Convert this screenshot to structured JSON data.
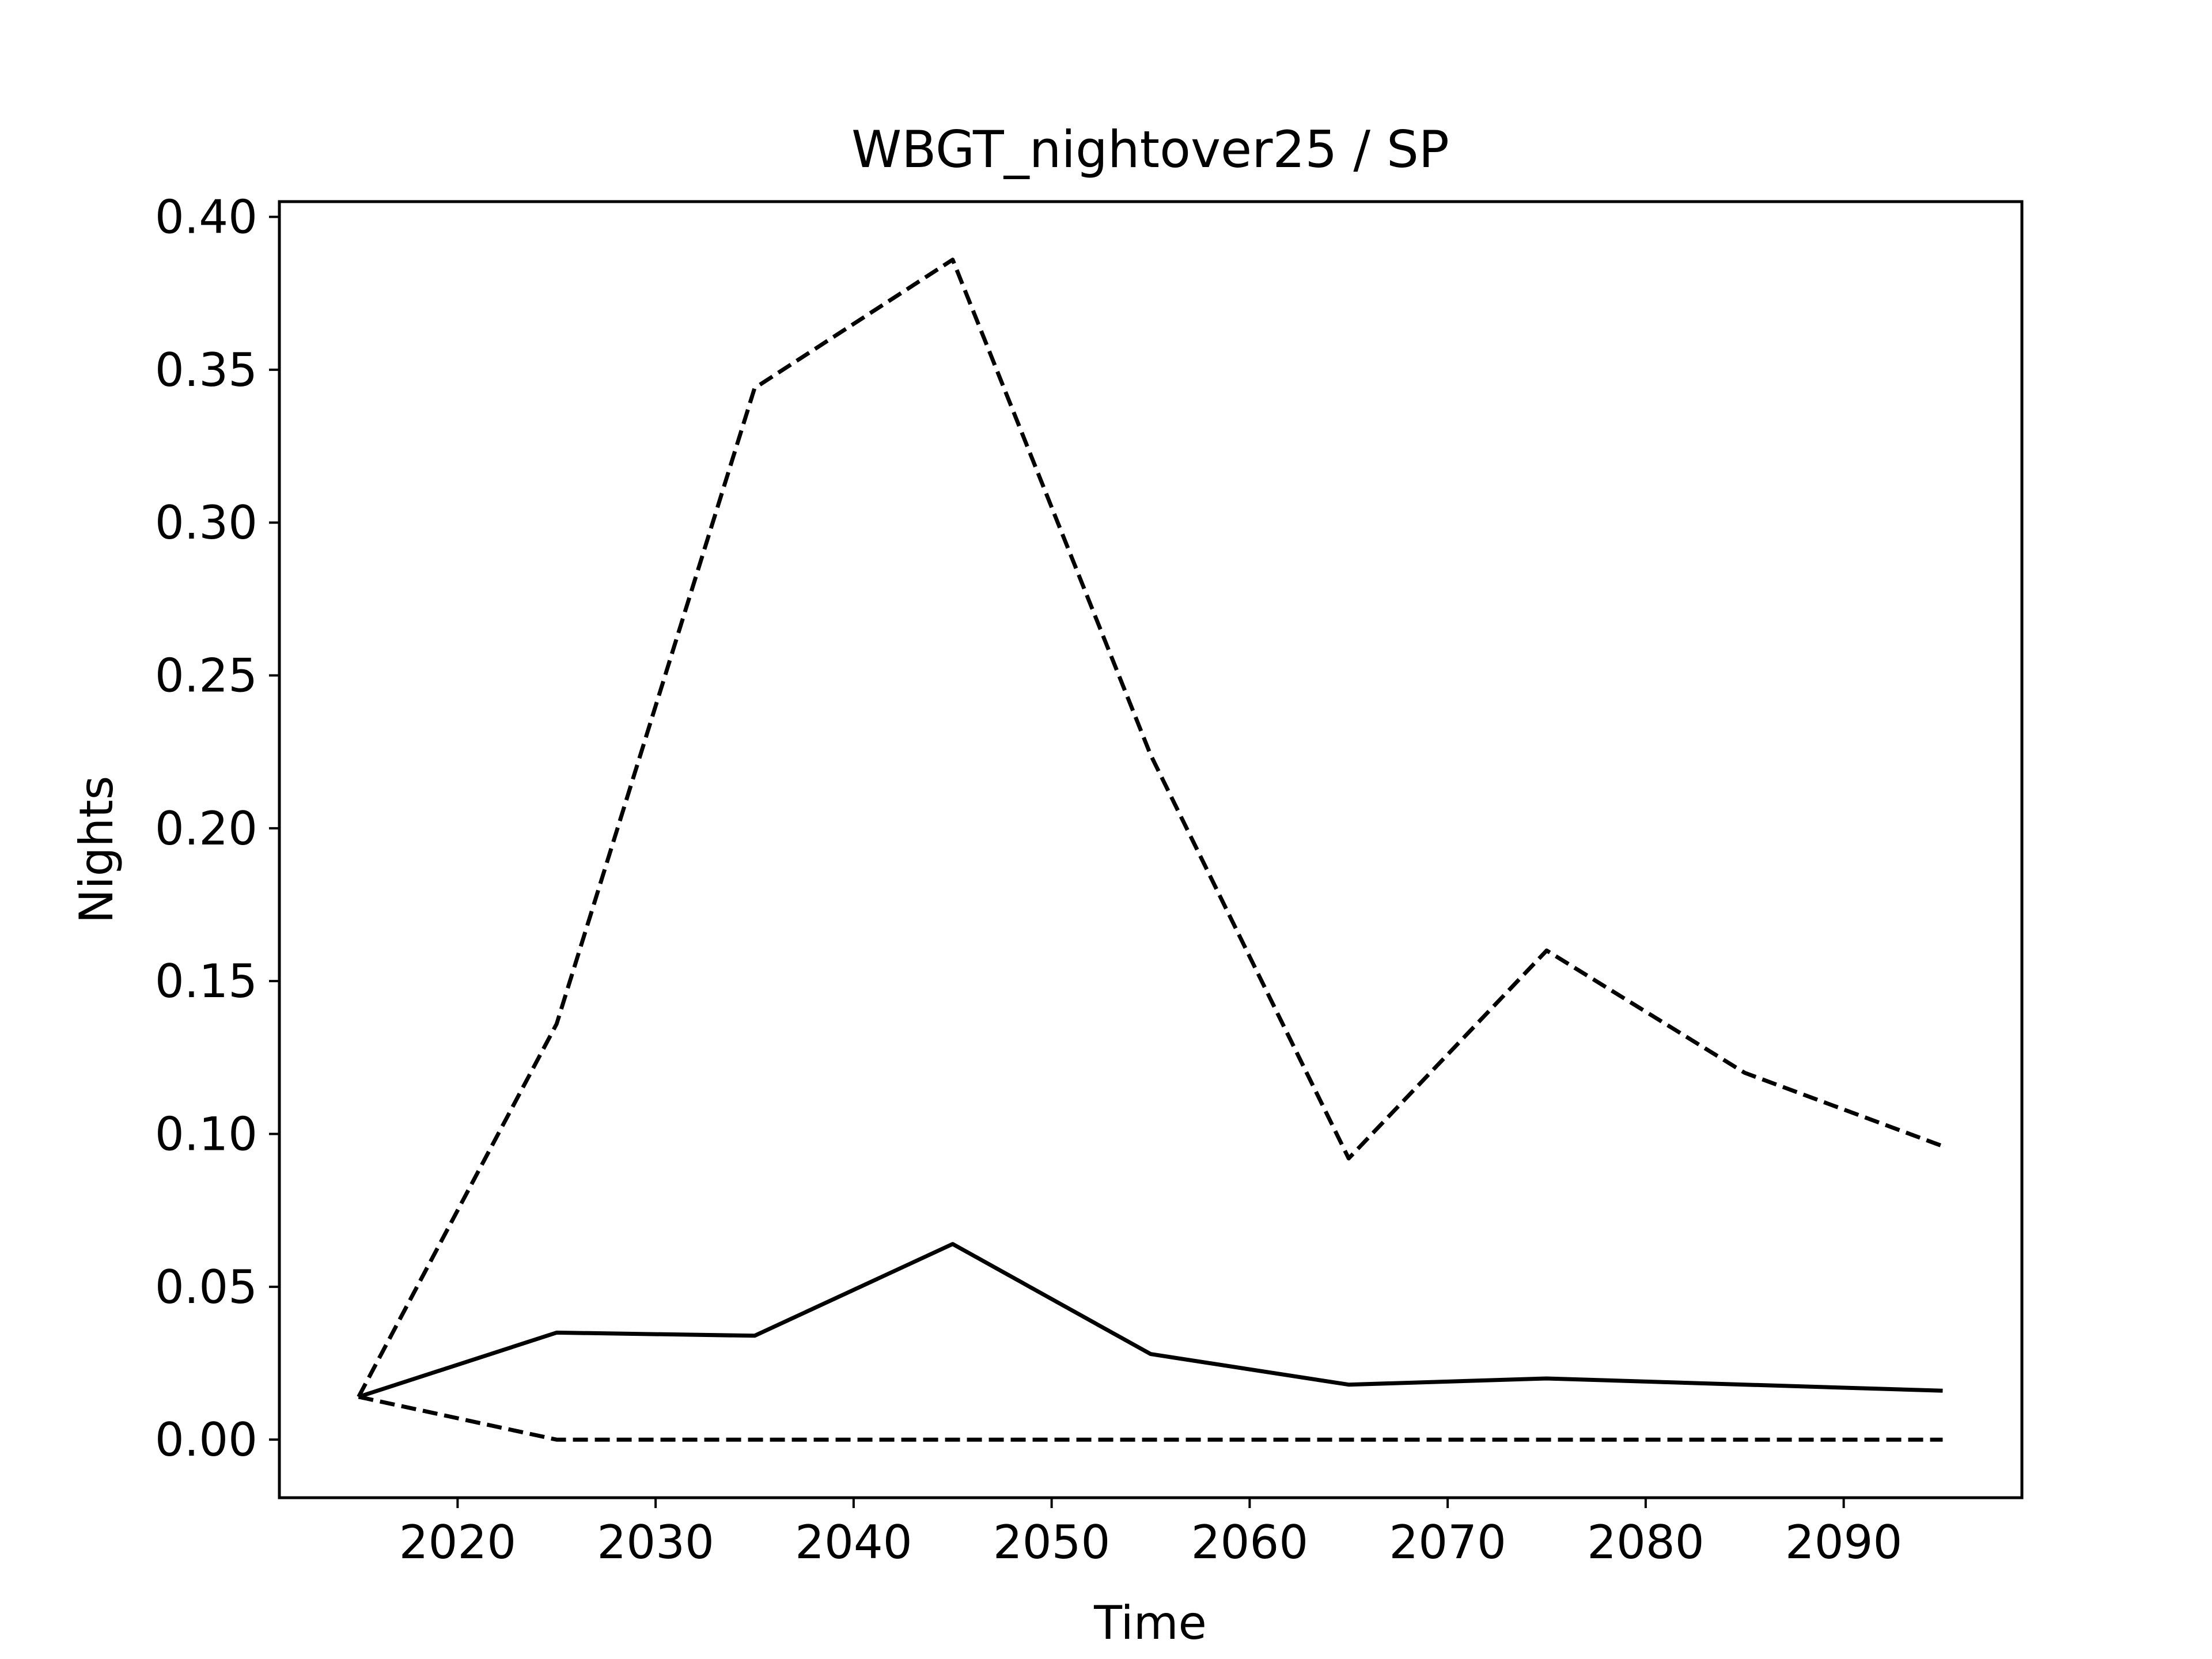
{
  "chart_data": {
    "type": "line",
    "title": "WBGT_nightover25 / SP",
    "xlabel": "Time",
    "ylabel": "Nights",
    "xlim": [
      2011,
      2099
    ],
    "ylim": [
      -0.019,
      0.405
    ],
    "x_ticks": [
      2020,
      2030,
      2040,
      2050,
      2060,
      2070,
      2080,
      2090
    ],
    "y_ticks": [
      0.0,
      0.05,
      0.1,
      0.15,
      0.2,
      0.25,
      0.3,
      0.35,
      0.4
    ],
    "y_tick_labels": [
      "0.00",
      "0.05",
      "0.10",
      "0.15",
      "0.20",
      "0.25",
      "0.30",
      "0.35",
      "0.40"
    ],
    "grid": false,
    "legend": "none",
    "x": [
      2015,
      2025,
      2035,
      2045,
      2055,
      2065,
      2075,
      2085,
      2095
    ],
    "series": [
      {
        "style": "solid",
        "color": "#000000",
        "values": [
          0.014,
          0.035,
          0.034,
          0.064,
          0.028,
          0.018,
          0.02,
          0.018,
          0.016
        ]
      },
      {
        "style": "dashed",
        "color": "#000000",
        "values": [
          0.014,
          0.136,
          0.344,
          0.386,
          0.224,
          0.092,
          0.16,
          0.12,
          0.096
        ]
      },
      {
        "style": "dashed",
        "color": "#000000",
        "values": [
          0.014,
          0.0,
          0.0,
          0.0,
          0.0,
          0.0,
          0.0,
          0.0,
          0.0
        ]
      }
    ]
  }
}
